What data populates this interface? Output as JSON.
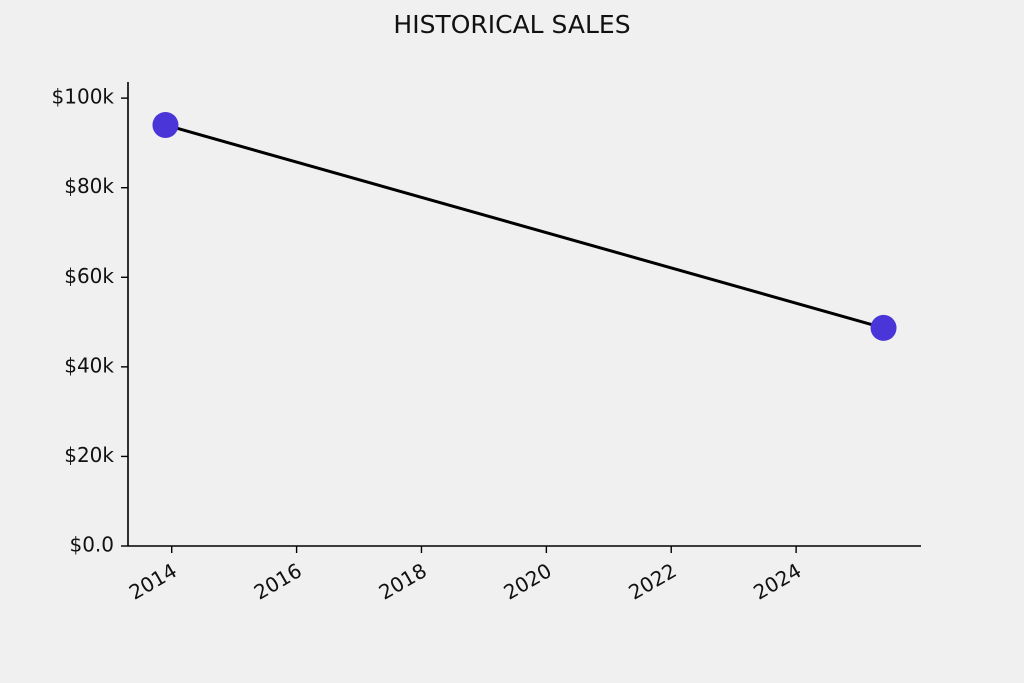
{
  "chart_data": {
    "type": "line",
    "title": "HISTORICAL SALES",
    "x": [
      2013.9,
      2025.4
    ],
    "series": [
      {
        "values": [
          94000,
          48700
        ],
        "color": "#000000",
        "marker_color": "#4a35d9"
      }
    ],
    "xlim": [
      2013.3,
      2026.0
    ],
    "xticks": [
      2014,
      2016,
      2018,
      2020,
      2022,
      2024
    ],
    "ylim": [
      0,
      103600
    ],
    "yticks": [
      {
        "value": 0,
        "label": "$0.0"
      },
      {
        "value": 20000,
        "label": "$20k"
      },
      {
        "value": 40000,
        "label": "$40k"
      },
      {
        "value": 60000,
        "label": "$60k"
      },
      {
        "value": 80000,
        "label": "$80k"
      },
      {
        "value": 100000,
        "label": "$100k"
      }
    ],
    "grid": false
  }
}
